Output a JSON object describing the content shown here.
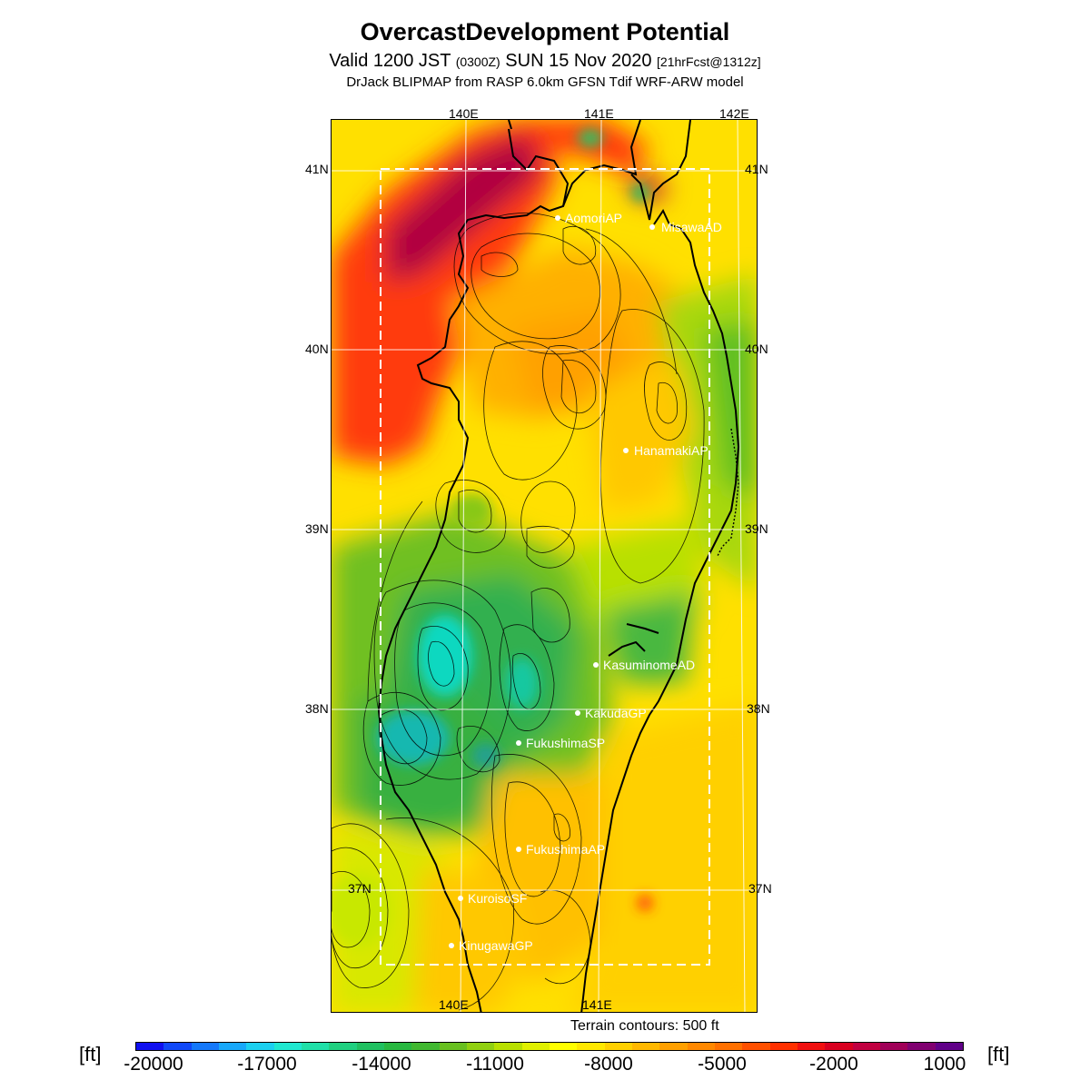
{
  "title": "OvercastDevelopment Potential",
  "subtitle": {
    "valid_prefix": "Valid 1200 JST",
    "utc": "(0300Z)",
    "date": "SUN 15 Nov 2020",
    "forecast": "[21hrFcst@1312z]"
  },
  "model_line": "DrJack BLIPMAP from RASP 6.0km GFSN Tdif WRF-ARW model",
  "grid_labels": {
    "top": [
      "140E",
      "141E",
      "142E"
    ],
    "bottom": [
      "140E",
      "141E"
    ],
    "left": [
      "41N",
      "40N",
      "39N",
      "38N",
      "37N"
    ],
    "right": [
      "41N",
      "40N",
      "39N",
      "38N",
      "37N"
    ]
  },
  "sites": [
    "AomoriAP",
    "MisawaAD",
    "HanamakiAP",
    "KasuminomeAD",
    "KakudaGP",
    "FukushimaSP",
    "FukushimaAP",
    "KuroisoSF",
    "KinugawaGP"
  ],
  "terrain_note": "Terrain contours: 500 ft",
  "colorbar": {
    "unit": "[ft]",
    "tick_labels": [
      "-20000",
      "-17000",
      "-14000",
      "-11000",
      "-8000",
      "-5000",
      "-2000",
      "1000"
    ],
    "colors": [
      "#1010f0",
      "#1048f8",
      "#1478fa",
      "#18a8fa",
      "#1cd0f0",
      "#20e8d0",
      "#20e0a8",
      "#20d080",
      "#20c060",
      "#28b840",
      "#40b830",
      "#68c020",
      "#90d010",
      "#b8e000",
      "#e0f000",
      "#ffff00",
      "#ffe800",
      "#ffd000",
      "#ffb800",
      "#ffa000",
      "#ff8800",
      "#ff7000",
      "#ff5000",
      "#ff3000",
      "#f01010",
      "#d80020",
      "#c00040",
      "#a00058",
      "#800070",
      "#600088"
    ]
  },
  "accent_colors": {
    "site_marker": "#ffffff",
    "grid": "#ffffff",
    "domain_box": "#ffffff",
    "coast": "#000000"
  }
}
